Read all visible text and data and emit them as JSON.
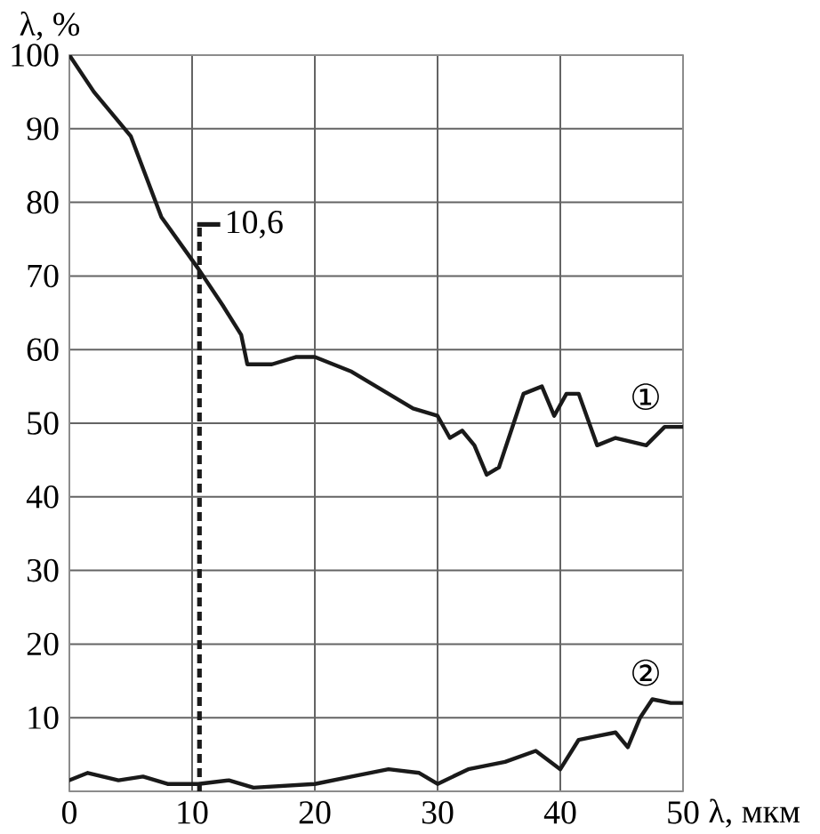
{
  "chart_data": {
    "type": "line",
    "xlabel": "λ, мкм",
    "ylabel": "λ, %",
    "series": [
      {
        "name": "①",
        "color": "#1a1a1a",
        "x": [
          0,
          2,
          5,
          7.5,
          10.5,
          12.5,
          14,
          14.5,
          16.5,
          18.5,
          20,
          23,
          26,
          28,
          30,
          31,
          32,
          33,
          34,
          35,
          36,
          37,
          38.5,
          39.5,
          40.5,
          41.5,
          43,
          44.5,
          47,
          48.5,
          50
        ],
        "values": [
          100,
          95,
          89,
          78,
          71,
          66,
          62,
          58,
          58,
          59,
          59,
          57,
          54,
          52,
          51,
          48,
          49,
          47,
          43,
          44,
          49,
          54,
          55,
          51,
          54,
          54,
          47,
          48,
          47,
          49.5,
          49.5
        ]
      },
      {
        "name": "②",
        "color": "#1a1a1a",
        "x": [
          0,
          1.5,
          4,
          6,
          8,
          10.5,
          13,
          15,
          20,
          23,
          26,
          28.5,
          30,
          32.5,
          35.5,
          38,
          40,
          41.5,
          43,
          44.5,
          45.5,
          46.5,
          47.5,
          49,
          50
        ],
        "values": [
          1.5,
          2.5,
          1.5,
          2,
          1,
          1,
          1.5,
          0.5,
          1,
          2,
          3,
          2.5,
          1,
          3,
          4,
          5.5,
          3,
          7,
          7.5,
          8,
          6,
          10,
          12.5,
          12,
          12
        ]
      }
    ],
    "xlim": [
      0,
      50
    ],
    "ylim": [
      0,
      100
    ],
    "xticks": [
      0,
      10,
      20,
      30,
      40,
      50
    ],
    "yticks": [
      10,
      20,
      30,
      40,
      50,
      60,
      70,
      80,
      90,
      100
    ],
    "grid": true,
    "legend": false,
    "marker": "none",
    "line_style": "solid",
    "ref_lines": [
      {
        "axis": "x",
        "value": 10.6,
        "line_style": "dashed",
        "color": "#1a1a1a"
      }
    ],
    "annotations": [
      {
        "text": "10,6",
        "x": 10.6,
        "y": 77
      }
    ]
  }
}
